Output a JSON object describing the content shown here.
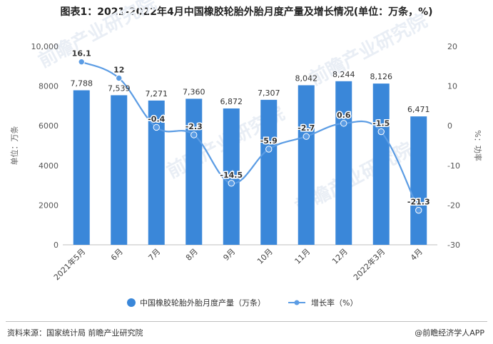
{
  "title": "图表1：2021-2022年4月中国橡胶轮胎外胎月度产量及增长情况(单位：万条，%)",
  "source": "资料来源：国家统计局 前瞻产业研究院",
  "credit": "@前瞻经济学人APP",
  "watermark": "前瞻产业研究院",
  "colors": {
    "bar": "#3a87d9",
    "line": "#5b9ce4",
    "text": "#333333",
    "axis": "#bfbfbf"
  },
  "chart_data": {
    "type": "bar",
    "categories": [
      "2021年5月",
      "6月",
      "7月",
      "8月",
      "9月",
      "10月",
      "11月",
      "12月",
      "2022年3月",
      "4月"
    ],
    "series": [
      {
        "name": "中国橡胶轮胎外胎月度产量（万条）",
        "type": "bar",
        "axis": "left",
        "values": [
          7788,
          7539,
          7271,
          7360,
          6872,
          7307,
          8042,
          8244,
          8126,
          6471
        ],
        "labels": [
          "7,788",
          "7,539",
          "7,271",
          "7,360",
          "6,872",
          "7,307",
          "8,042",
          "8,244",
          "8,126",
          "6,471"
        ]
      },
      {
        "name": "增长率（%）",
        "type": "line",
        "axis": "right",
        "values": [
          16.1,
          12,
          -0.4,
          -2.3,
          -14.5,
          -5.9,
          -2.7,
          0.6,
          -1.5,
          -21.3
        ],
        "labels": [
          "16.1",
          "12",
          "-0.4",
          "-2.3",
          "-14.5",
          "-5.9",
          "-2.7",
          "0.6",
          "-1.5",
          "-21.3"
        ]
      }
    ],
    "y_left": {
      "label": "单位：万条",
      "lim": [
        0,
        10000
      ],
      "ticks": [
        0,
        2000,
        4000,
        6000,
        8000,
        10000
      ],
      "tick_labels": [
        "0",
        "2000",
        "4000",
        "6000",
        "8000",
        "10,000"
      ]
    },
    "y_right": {
      "label": "%：功率",
      "lim": [
        -30,
        20
      ],
      "ticks": [
        -30,
        -20,
        -10,
        0,
        10,
        20
      ],
      "tick_labels": [
        "-30",
        "-20",
        "-10",
        "0",
        "10",
        "20"
      ]
    },
    "grid": false,
    "legend_position": "bottom"
  }
}
